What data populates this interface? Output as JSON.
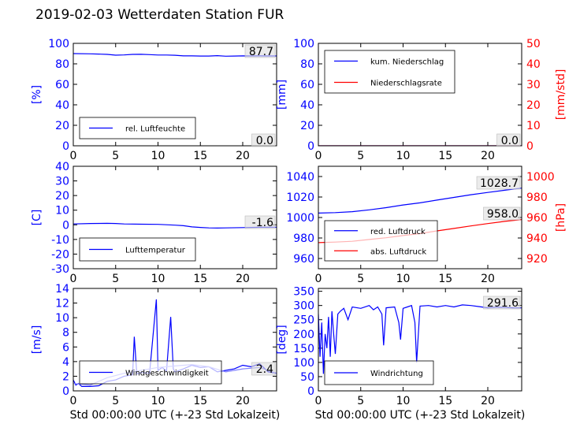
{
  "title": "2019-02-03 Wetterdaten Station FUR",
  "title_glyph": "",
  "xlabel": "Std 00:00:00 UTC (+-23 Std Lokalzeit)",
  "colors": {
    "left_axis": "#0000ff",
    "right_axis": "#ff0000",
    "series_primary": "#0000ff",
    "series_secondary": "#ff0000",
    "series_light": "#8080ff"
  },
  "chart_data": [
    {
      "id": "humidity",
      "type": "line",
      "ylabel": "[%]",
      "xlim": [
        0,
        24
      ],
      "ylim": [
        0,
        100
      ],
      "xticks": [
        0,
        5,
        10,
        15,
        20
      ],
      "yticks": [
        0,
        20,
        40,
        60,
        80,
        100
      ],
      "legend": "bottom-left",
      "current_value": "87.7",
      "series": [
        {
          "name": "rel. Luftfeuchte",
          "axis": "left",
          "color": "#0000ff",
          "x": [
            0,
            2,
            3,
            4,
            5,
            6,
            7,
            8,
            9,
            10,
            11,
            12,
            13,
            14,
            15,
            16,
            17,
            18,
            19,
            20,
            21,
            22,
            23,
            24
          ],
          "y": [
            90,
            89.8,
            89.5,
            89.2,
            88.5,
            88.7,
            89.2,
            89.3,
            89,
            88.6,
            88.6,
            88.4,
            87.8,
            87.8,
            87.6,
            87.6,
            88,
            87.5,
            87.6,
            87.8,
            87.7,
            87.8,
            87.7,
            87.7
          ]
        }
      ]
    },
    {
      "id": "precip",
      "type": "line",
      "ylabel": "[mm]",
      "ylabel_right": "[mm/std]",
      "xlim": [
        0,
        24
      ],
      "ylim": [
        0,
        100
      ],
      "ylim_right": [
        0,
        50
      ],
      "xticks": [
        0,
        5,
        10,
        15,
        20
      ],
      "yticks": [
        0,
        20,
        40,
        60,
        80,
        100
      ],
      "yticks_right": [
        0,
        10,
        20,
        30,
        40,
        50
      ],
      "legend": "top-left",
      "current_value": "0.0",
      "current_value_right": "0.0",
      "series": [
        {
          "name": "kum. Niederschlag",
          "axis": "left",
          "color": "#0000ff",
          "x": [
            0,
            24
          ],
          "y": [
            0,
            0
          ]
        },
        {
          "name": "Niederschlagsrate",
          "axis": "right",
          "color": "#ff0000",
          "x": [
            0,
            24
          ],
          "y": [
            0,
            0
          ]
        }
      ]
    },
    {
      "id": "temperature",
      "type": "line",
      "ylabel": "[C]",
      "xlim": [
        0,
        24
      ],
      "ylim": [
        -30,
        40
      ],
      "xticks": [
        0,
        5,
        10,
        15,
        20
      ],
      "yticks": [
        -30,
        -20,
        -10,
        0,
        10,
        20,
        30,
        40
      ],
      "legend": "bottom-left",
      "current_value": "-1.6",
      "series": [
        {
          "name": "Lufttemperatur",
          "axis": "left",
          "color": "#0000ff",
          "x": [
            0,
            2,
            4,
            5,
            6,
            8,
            10,
            12,
            13,
            14,
            15,
            16,
            17,
            18,
            20,
            22,
            24
          ],
          "y": [
            0.6,
            0.9,
            1.0,
            0.9,
            0.6,
            0.4,
            0.3,
            -0.2,
            -0.6,
            -1.4,
            -1.8,
            -2.1,
            -2.2,
            -2.1,
            -1.9,
            -1.7,
            -1.6
          ]
        }
      ]
    },
    {
      "id": "pressure",
      "type": "line",
      "ylabel_right": "[hPa]",
      "xlim": [
        0,
        24
      ],
      "ylim": [
        950,
        1050
      ],
      "ylim_right": [
        910,
        1010
      ],
      "xticks": [
        0,
        5,
        10,
        15,
        20
      ],
      "yticks": [
        960,
        980,
        1000,
        1020,
        1040
      ],
      "yticks_right": [
        920,
        940,
        960,
        980,
        1000
      ],
      "legend": "bottom-left",
      "current_value": "1028.7",
      "current_value_right": "958.0",
      "series": [
        {
          "name": "red. Luftdruck",
          "axis": "left",
          "color": "#0000ff",
          "x": [
            0,
            2,
            4,
            6,
            8,
            10,
            12,
            14,
            16,
            18,
            20,
            22,
            24
          ],
          "y": [
            1004.3,
            1004.8,
            1005.7,
            1007.5,
            1009.6,
            1012.2,
            1014.3,
            1017,
            1019.6,
            1022.2,
            1024.5,
            1026.6,
            1028.7
          ]
        },
        {
          "name": "abs. Luftdruck",
          "axis": "right",
          "color": "#ff0000",
          "x": [
            0,
            2,
            4,
            6,
            8,
            10,
            12,
            14,
            16,
            18,
            20,
            22,
            24
          ],
          "y": [
            935.5,
            936,
            936.8,
            938.5,
            940.2,
            942.4,
            944.3,
            946.9,
            949.3,
            951.8,
            954.1,
            956.2,
            958
          ]
        }
      ]
    },
    {
      "id": "wind_speed",
      "type": "line",
      "ylabel": "[m/s]",
      "xlim": [
        0,
        24
      ],
      "ylim": [
        0,
        14
      ],
      "xticks": [
        0,
        5,
        10,
        15,
        20
      ],
      "yticks": [
        0,
        2,
        4,
        6,
        8,
        10,
        12,
        14
      ],
      "legend": "bottom-left",
      "current_value": "2.4",
      "series": [
        {
          "name": "Windgeschwindigkeit",
          "axis": "left",
          "color": "#0000ff",
          "x": [
            0,
            0.3,
            0.6,
            1,
            2,
            3,
            4,
            5,
            6,
            7,
            7.2,
            7.5,
            8,
            9,
            9.8,
            10,
            10.5,
            11,
            11.5,
            11.8,
            12,
            13,
            14,
            15,
            16,
            17,
            18,
            19,
            20,
            21,
            22,
            23,
            24
          ],
          "y": [
            1.5,
            0.8,
            1.0,
            0.6,
            0.6,
            0.7,
            1.3,
            1.5,
            2.0,
            2.2,
            7.4,
            2.3,
            2.5,
            2.4,
            12.5,
            2.8,
            3.2,
            2.7,
            10.1,
            3.0,
            2.6,
            3.0,
            3.5,
            3.2,
            3.3,
            2.6,
            2.8,
            3.0,
            3.5,
            3.3,
            3.7,
            2.6,
            2.4
          ]
        },
        {
          "name": "",
          "axis": "left",
          "color": "#8080ff",
          "x": [
            0,
            2,
            4,
            6,
            8,
            10,
            12,
            14,
            16,
            18,
            20,
            22,
            24
          ],
          "y": [
            1.0,
            0.8,
            1.8,
            2.4,
            2.8,
            3.2,
            3.4,
            3.6,
            3.3,
            2.6,
            3.0,
            3.2,
            2.4
          ]
        }
      ]
    },
    {
      "id": "wind_direction",
      "type": "line",
      "ylabel": "[deg]",
      "xlim": [
        0,
        24
      ],
      "ylim": [
        0,
        360
      ],
      "xticks": [
        0,
        5,
        10,
        15,
        20
      ],
      "yticks": [
        0,
        50,
        100,
        150,
        200,
        250,
        300,
        350
      ],
      "legend": "bottom-left",
      "current_value": "291.6",
      "series": [
        {
          "name": "Windrichtung",
          "axis": "left",
          "color": "#0000ff",
          "x": [
            0,
            0.2,
            0.4,
            0.6,
            0.8,
            1,
            1.2,
            1.4,
            1.6,
            1.8,
            2,
            2.3,
            2.6,
            3,
            3.5,
            4,
            5,
            6,
            6.5,
            7,
            7.5,
            7.7,
            8,
            9,
            9.5,
            9.7,
            10,
            10.5,
            11,
            11.4,
            11.6,
            12,
            13,
            14,
            15,
            16,
            17,
            18,
            19,
            20,
            21,
            22,
            23,
            24
          ],
          "y": [
            270,
            120,
            240,
            60,
            200,
            150,
            260,
            120,
            280,
            200,
            130,
            270,
            280,
            290,
            250,
            295,
            290,
            300,
            285,
            295,
            270,
            160,
            292,
            295,
            240,
            180,
            290,
            295,
            300,
            240,
            100,
            298,
            300,
            295,
            300,
            295,
            302,
            300,
            296,
            292,
            294,
            293,
            292,
            291.6
          ]
        }
      ]
    }
  ]
}
